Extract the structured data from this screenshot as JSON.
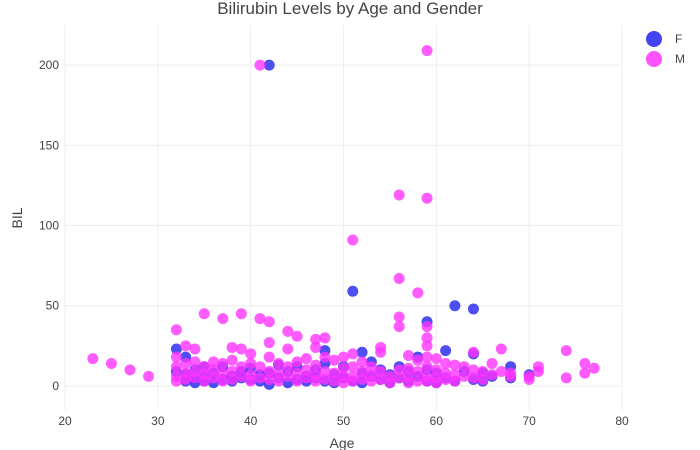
{
  "chart_data": {
    "type": "scatter",
    "title": "Bilirubin Levels by Age and Gender",
    "xlabel": "Age",
    "ylabel": "BIL",
    "xlim": [
      20,
      80
    ],
    "ylim": [
      -15,
      225
    ],
    "x_ticks": [
      20,
      30,
      40,
      50,
      60,
      70,
      80
    ],
    "y_ticks": [
      0,
      50,
      100,
      150,
      200
    ],
    "grid": true,
    "legend_position": "top-right",
    "series": [
      {
        "name": "F",
        "color": "#2222ee",
        "points": [
          [
            32,
            23
          ],
          [
            32,
            9
          ],
          [
            33,
            18
          ],
          [
            33,
            3
          ],
          [
            33,
            7
          ],
          [
            34,
            2
          ],
          [
            34,
            5
          ],
          [
            34,
            10
          ],
          [
            35,
            3
          ],
          [
            35,
            12
          ],
          [
            35,
            6
          ],
          [
            36,
            2
          ],
          [
            36,
            8
          ],
          [
            37,
            4
          ],
          [
            37,
            12
          ],
          [
            38,
            3
          ],
          [
            38,
            6
          ],
          [
            39,
            5
          ],
          [
            39,
            9
          ],
          [
            40,
            4
          ],
          [
            40,
            11
          ],
          [
            41,
            3
          ],
          [
            41,
            7
          ],
          [
            42,
            200
          ],
          [
            42,
            1
          ],
          [
            42,
            8
          ],
          [
            43,
            5
          ],
          [
            43,
            13
          ],
          [
            44,
            2
          ],
          [
            44,
            9
          ],
          [
            45,
            4
          ],
          [
            45,
            12
          ],
          [
            46,
            6
          ],
          [
            46,
            3
          ],
          [
            47,
            10
          ],
          [
            47,
            5
          ],
          [
            48,
            22
          ],
          [
            48,
            3
          ],
          [
            48,
            14
          ],
          [
            49,
            7
          ],
          [
            49,
            2
          ],
          [
            50,
            5
          ],
          [
            50,
            12
          ],
          [
            51,
            59
          ],
          [
            51,
            3
          ],
          [
            52,
            21
          ],
          [
            52,
            8
          ],
          [
            52,
            2
          ],
          [
            53,
            15
          ],
          [
            53,
            6
          ],
          [
            54,
            4
          ],
          [
            54,
            10
          ],
          [
            55,
            2
          ],
          [
            55,
            7
          ],
          [
            56,
            5
          ],
          [
            56,
            12
          ],
          [
            57,
            3
          ],
          [
            57,
            9
          ],
          [
            58,
            18
          ],
          [
            58,
            6
          ],
          [
            59,
            40
          ],
          [
            59,
            3
          ],
          [
            59,
            10
          ],
          [
            60,
            2
          ],
          [
            60,
            8
          ],
          [
            61,
            22
          ],
          [
            61,
            5
          ],
          [
            62,
            50
          ],
          [
            62,
            3
          ],
          [
            63,
            9
          ],
          [
            64,
            48
          ],
          [
            64,
            20
          ],
          [
            64,
            4
          ],
          [
            65,
            3
          ],
          [
            65,
            8
          ],
          [
            66,
            6
          ],
          [
            68,
            12
          ],
          [
            68,
            5
          ],
          [
            70,
            7
          ]
        ]
      },
      {
        "name": "M",
        "color": "#ff33ff",
        "points": [
          [
            23,
            17
          ],
          [
            25,
            14
          ],
          [
            27,
            10
          ],
          [
            29,
            6
          ],
          [
            32,
            35
          ],
          [
            32,
            18
          ],
          [
            32,
            12
          ],
          [
            32,
            6
          ],
          [
            32,
            3
          ],
          [
            33,
            25
          ],
          [
            33,
            14
          ],
          [
            33,
            8
          ],
          [
            33,
            4
          ],
          [
            34,
            23
          ],
          [
            34,
            15
          ],
          [
            34,
            9
          ],
          [
            34,
            5
          ],
          [
            35,
            45
          ],
          [
            35,
            12
          ],
          [
            35,
            7
          ],
          [
            35,
            3
          ],
          [
            36,
            15
          ],
          [
            36,
            10
          ],
          [
            36,
            5
          ],
          [
            37,
            42
          ],
          [
            37,
            14
          ],
          [
            37,
            8
          ],
          [
            37,
            3
          ],
          [
            38,
            24
          ],
          [
            38,
            16
          ],
          [
            38,
            9
          ],
          [
            38,
            4
          ],
          [
            39,
            45
          ],
          [
            39,
            23
          ],
          [
            39,
            12
          ],
          [
            39,
            6
          ],
          [
            40,
            20
          ],
          [
            40,
            14
          ],
          [
            40,
            7
          ],
          [
            40,
            3
          ],
          [
            41,
            200
          ],
          [
            41,
            42
          ],
          [
            41,
            12
          ],
          [
            41,
            5
          ],
          [
            42,
            40
          ],
          [
            42,
            27
          ],
          [
            42,
            18
          ],
          [
            42,
            9
          ],
          [
            42,
            4
          ],
          [
            43,
            14
          ],
          [
            43,
            8
          ],
          [
            43,
            3
          ],
          [
            44,
            34
          ],
          [
            44,
            23
          ],
          [
            44,
            12
          ],
          [
            44,
            6
          ],
          [
            45,
            31
          ],
          [
            45,
            15
          ],
          [
            45,
            8
          ],
          [
            45,
            3
          ],
          [
            46,
            17
          ],
          [
            46,
            10
          ],
          [
            46,
            5
          ],
          [
            47,
            29
          ],
          [
            47,
            24
          ],
          [
            47,
            13
          ],
          [
            47,
            7
          ],
          [
            47,
            3
          ],
          [
            48,
            30
          ],
          [
            48,
            18
          ],
          [
            48,
            9
          ],
          [
            48,
            4
          ],
          [
            49,
            16
          ],
          [
            49,
            8
          ],
          [
            49,
            3
          ],
          [
            50,
            18
          ],
          [
            50,
            11
          ],
          [
            50,
            6
          ],
          [
            50,
            2
          ],
          [
            51,
            91
          ],
          [
            51,
            20
          ],
          [
            51,
            12
          ],
          [
            51,
            6
          ],
          [
            51,
            3
          ],
          [
            52,
            15
          ],
          [
            52,
            9
          ],
          [
            52,
            4
          ],
          [
            53,
            12
          ],
          [
            53,
            7
          ],
          [
            53,
            3
          ],
          [
            54,
            24
          ],
          [
            54,
            21
          ],
          [
            54,
            9
          ],
          [
            54,
            4
          ],
          [
            55,
            6
          ],
          [
            55,
            2
          ],
          [
            56,
            119
          ],
          [
            56,
            67
          ],
          [
            56,
            43
          ],
          [
            56,
            37
          ],
          [
            56,
            10
          ],
          [
            56,
            5
          ],
          [
            57,
            19
          ],
          [
            57,
            11
          ],
          [
            57,
            6
          ],
          [
            57,
            2
          ],
          [
            58,
            58
          ],
          [
            58,
            16
          ],
          [
            58,
            9
          ],
          [
            58,
            3
          ],
          [
            59,
            209
          ],
          [
            59,
            117
          ],
          [
            59,
            37
          ],
          [
            59,
            30
          ],
          [
            59,
            25
          ],
          [
            59,
            18
          ],
          [
            59,
            12
          ],
          [
            59,
            6
          ],
          [
            59,
            3
          ],
          [
            60,
            17
          ],
          [
            60,
            10
          ],
          [
            60,
            5
          ],
          [
            60,
            2
          ],
          [
            61,
            14
          ],
          [
            61,
            8
          ],
          [
            61,
            4
          ],
          [
            62,
            13
          ],
          [
            62,
            7
          ],
          [
            62,
            3
          ],
          [
            63,
            12
          ],
          [
            63,
            6
          ],
          [
            64,
            21
          ],
          [
            64,
            10
          ],
          [
            64,
            5
          ],
          [
            65,
            9
          ],
          [
            65,
            4
          ],
          [
            66,
            14
          ],
          [
            66,
            7
          ],
          [
            67,
            23
          ],
          [
            67,
            9
          ],
          [
            68,
            8
          ],
          [
            68,
            6
          ],
          [
            70,
            4
          ],
          [
            70,
            6
          ],
          [
            71,
            12
          ],
          [
            71,
            9
          ],
          [
            74,
            22
          ],
          [
            74,
            5
          ],
          [
            76,
            14
          ],
          [
            76,
            8
          ],
          [
            77,
            11
          ]
        ]
      }
    ]
  }
}
